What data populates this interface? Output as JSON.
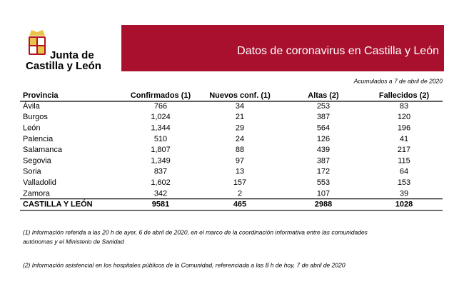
{
  "logo": {
    "line1": "Junta de",
    "line2": "Castilla y León"
  },
  "banner": {
    "title": "Datos de coronavirus en Castilla y León"
  },
  "subtitle": "Acumulados a 7 de abril de 2020",
  "table": {
    "columns": [
      "Provincia",
      "Confirmados (1)",
      "Nuevos conf. (1)",
      "Altas (2)",
      "Fallecidos (2)"
    ],
    "rows": [
      [
        "Ávila",
        "766",
        "34",
        "253",
        "83"
      ],
      [
        "Burgos",
        "1,024",
        "21",
        "387",
        "120"
      ],
      [
        "León",
        "1,344",
        "29",
        "564",
        "196"
      ],
      [
        "Palencia",
        "510",
        "24",
        "126",
        "41"
      ],
      [
        "Salamanca",
        "1,807",
        "88",
        "439",
        "217"
      ],
      [
        "Segovia",
        "1,349",
        "97",
        "387",
        "115"
      ],
      [
        "Soria",
        "837",
        "13",
        "172",
        "64"
      ],
      [
        "Valladolid",
        "1,602",
        "157",
        "553",
        "153"
      ],
      [
        "Zamora",
        "342",
        "2",
        "107",
        "39"
      ]
    ],
    "total": [
      "CASTILLA Y LEÓN",
      "9581",
      "465",
      "2988",
      "1028"
    ]
  },
  "footnotes": [
    [
      "(1) Información referida a las 20 h de ayer, 6 de abril de 2020, en el marco de la coordinación informativa entre las comunidades",
      "autónomas y el Ministerio de Sanidad"
    ],
    [
      "(2) Información asistencial en los hospitales públicos de la Comunidad, referenciada a las 8 h de hoy, 7 de abril de 2020"
    ]
  ]
}
